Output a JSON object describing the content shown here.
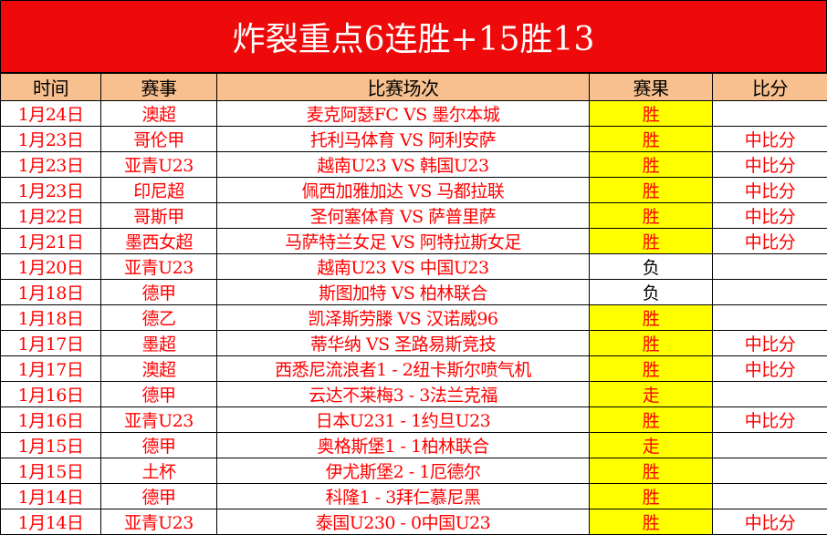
{
  "title": "炸裂重点6连胜+15胜13",
  "headers": [
    "时间",
    "赛事",
    "比赛场次",
    "赛果",
    "比分"
  ],
  "colors": {
    "title_bg": "#ee0a0a",
    "header_bg": "#f8c08e",
    "highlight": "#ffff00",
    "text": "#ff0000"
  },
  "rows": [
    {
      "date": "1月24日",
      "league": "澳超",
      "match": "麦克阿瑟FC VS 墨尔本城",
      "result": "胜",
      "score": ""
    },
    {
      "date": "1月23日",
      "league": "哥伦甲",
      "match": "托利马体育 VS 阿利安萨",
      "result": "胜",
      "score": "中比分"
    },
    {
      "date": "1月23日",
      "league": "亚青U23",
      "match": "越南U23 VS 韩国U23",
      "result": "胜",
      "score": "中比分"
    },
    {
      "date": "1月23日",
      "league": "印尼超",
      "match": "佩西加雅加达 VS 马都拉联",
      "result": "胜",
      "score": "中比分"
    },
    {
      "date": "1月22日",
      "league": "哥斯甲",
      "match": "圣何塞体育 VS 萨普里萨",
      "result": "胜",
      "score": "中比分"
    },
    {
      "date": "1月21日",
      "league": "墨西女超",
      "match": "马萨特兰女足 VS 阿特拉斯女足",
      "result": "胜",
      "score": "中比分"
    },
    {
      "date": "1月20日",
      "league": "亚青U23",
      "match": "越南U23 VS 中国U23",
      "result": "负",
      "score": ""
    },
    {
      "date": "1月18日",
      "league": "德甲",
      "match": "斯图加特 VS 柏林联合",
      "result": "负",
      "score": ""
    },
    {
      "date": "1月18日",
      "league": "德乙",
      "match": "凯泽斯劳滕 VS 汉诺威96",
      "result": "胜",
      "score": ""
    },
    {
      "date": "1月17日",
      "league": "墨超",
      "match": "蒂华纳 VS 圣路易斯竞技",
      "result": "胜",
      "score": "中比分"
    },
    {
      "date": "1月17日",
      "league": "澳超",
      "match": "西悉尼流浪者1 - 2纽卡斯尔喷气机",
      "result": "胜",
      "score": "中比分"
    },
    {
      "date": "1月16日",
      "league": "德甲",
      "match": "云达不莱梅3 - 3法兰克福",
      "result": "走",
      "score": ""
    },
    {
      "date": "1月16日",
      "league": "亚青U23",
      "match": "日本U231 - 1约旦U23",
      "result": "胜",
      "score": "中比分"
    },
    {
      "date": "1月15日",
      "league": "德甲",
      "match": "奥格斯堡1 - 1柏林联合",
      "result": "走",
      "score": ""
    },
    {
      "date": "1月15日",
      "league": "土杯",
      "match": "伊尤斯堡2 - 1厄德尔",
      "result": "胜",
      "score": ""
    },
    {
      "date": "1月14日",
      "league": "德甲",
      "match": "科隆1 - 3拜仁慕尼黑",
      "result": "胜",
      "score": ""
    },
    {
      "date": "1月14日",
      "league": "亚青U23",
      "match": "泰国U230 - 0中国U23",
      "result": "胜",
      "score": "中比分"
    }
  ]
}
